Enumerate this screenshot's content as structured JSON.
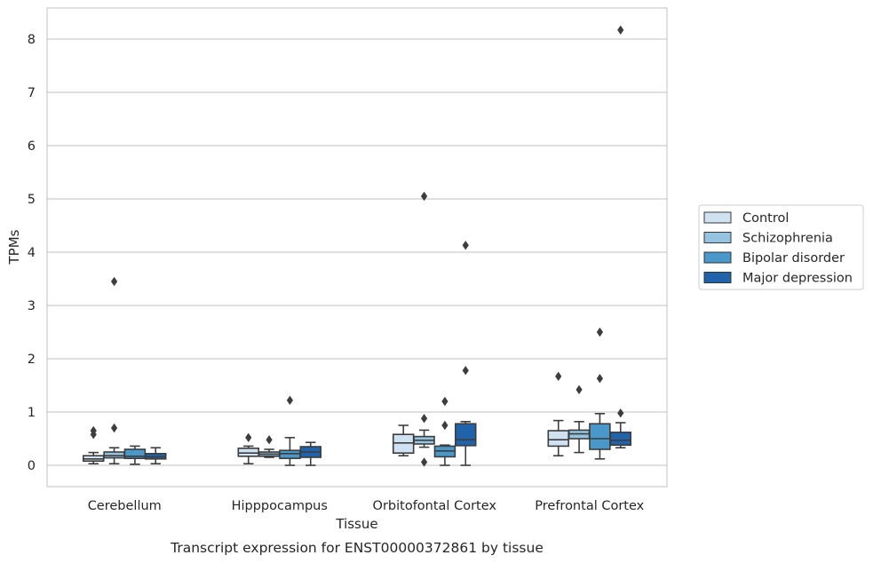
{
  "chart_data": {
    "type": "box",
    "title": "",
    "caption": "Transcript expression for ENST00000372861 by tissue",
    "xlabel": "Tissue",
    "ylabel": "TPMs",
    "ylim": [
      -0.4,
      8.6
    ],
    "yticks": [
      0,
      1,
      2,
      3,
      4,
      5,
      6,
      7,
      8
    ],
    "grid": "horizontal",
    "legend_position": "right",
    "categories": [
      "Cerebellum",
      "Hipppocampus",
      "Orbitofontal Cortex",
      "Prefrontal Cortex"
    ],
    "series": [
      {
        "name": "Control",
        "color": "#d0e1f2",
        "boxes": [
          {
            "whislo": 0.03,
            "q1": 0.08,
            "med": 0.12,
            "q3": 0.18,
            "whishi": 0.24,
            "fliers": [
              0.58,
              0.65
            ]
          },
          {
            "whislo": 0.03,
            "q1": 0.17,
            "med": 0.23,
            "q3": 0.32,
            "whishi": 0.36,
            "fliers": [
              0.52
            ]
          },
          {
            "whislo": 0.18,
            "q1": 0.23,
            "med": 0.42,
            "q3": 0.58,
            "whishi": 0.75,
            "fliers": []
          },
          {
            "whislo": 0.18,
            "q1": 0.36,
            "med": 0.48,
            "q3": 0.65,
            "whishi": 0.84,
            "fliers": [
              1.67
            ]
          }
        ]
      },
      {
        "name": "Schizophrenia",
        "color": "#94c4df",
        "boxes": [
          {
            "whislo": 0.03,
            "q1": 0.14,
            "med": 0.18,
            "q3": 0.25,
            "whishi": 0.33,
            "fliers": [
              0.7,
              3.45
            ]
          },
          {
            "whislo": 0.15,
            "q1": 0.17,
            "med": 0.21,
            "q3": 0.25,
            "whishi": 0.3,
            "fliers": [
              0.48
            ]
          },
          {
            "whislo": 0.34,
            "q1": 0.4,
            "med": 0.47,
            "q3": 0.54,
            "whishi": 0.66,
            "fliers": [
              0.06,
              0.88,
              5.05
            ]
          },
          {
            "whislo": 0.24,
            "q1": 0.5,
            "med": 0.59,
            "q3": 0.66,
            "whishi": 0.82,
            "fliers": [
              1.42
            ]
          }
        ]
      },
      {
        "name": "Bipolar disorder",
        "color": "#4a98c9",
        "boxes": [
          {
            "whislo": 0.02,
            "q1": 0.13,
            "med": 0.17,
            "q3": 0.3,
            "whishi": 0.36,
            "fliers": []
          },
          {
            "whislo": 0.0,
            "q1": 0.13,
            "med": 0.22,
            "q3": 0.28,
            "whishi": 0.52,
            "fliers": [
              1.22
            ]
          },
          {
            "whislo": 0.0,
            "q1": 0.16,
            "med": 0.27,
            "q3": 0.36,
            "whishi": 0.38,
            "fliers": [
              0.75,
              1.2
            ]
          },
          {
            "whislo": 0.12,
            "q1": 0.3,
            "med": 0.5,
            "q3": 0.78,
            "whishi": 0.97,
            "fliers": [
              1.63,
              2.5
            ]
          }
        ]
      },
      {
        "name": "Major depression",
        "color": "#2163aa",
        "boxes": [
          {
            "whislo": 0.03,
            "q1": 0.12,
            "med": 0.16,
            "q3": 0.22,
            "whishi": 0.33,
            "fliers": []
          },
          {
            "whislo": 0.0,
            "q1": 0.15,
            "med": 0.25,
            "q3": 0.35,
            "whishi": 0.43,
            "fliers": []
          },
          {
            "whislo": 0.0,
            "q1": 0.37,
            "med": 0.48,
            "q3": 0.78,
            "whishi": 0.82,
            "fliers": [
              1.78,
              4.13
            ]
          },
          {
            "whislo": 0.33,
            "q1": 0.38,
            "med": 0.47,
            "q3": 0.62,
            "whishi": 0.8,
            "fliers": [
              0.98,
              8.17
            ]
          }
        ]
      }
    ]
  }
}
